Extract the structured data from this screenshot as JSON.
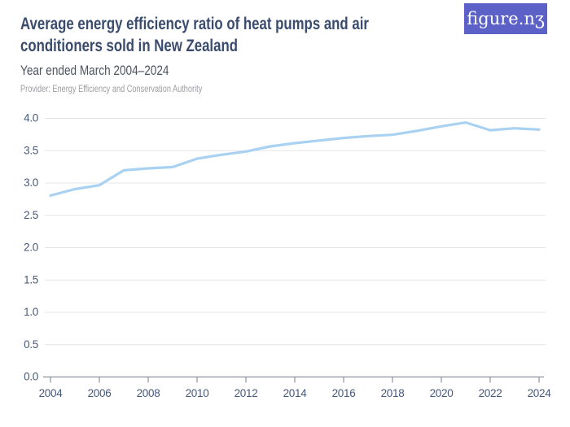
{
  "header": {
    "title": "Average energy efficiency ratio of heat pumps and air conditioners sold in New Zealand",
    "title_lines": [
      "Average energy efficiency ratio of heat pumps and air",
      "conditioners sold in New Zealand"
    ],
    "subtitle": "Year ended March 2004–2024",
    "provider": "Provider: Energy Efficiency and Conservation Authority"
  },
  "logo": {
    "text": "figure.nz",
    "display": "figure.nʒ"
  },
  "colors": {
    "title": "#3a4c6e",
    "subtitle": "#4e535e",
    "provider": "#9a9da1",
    "axis_label": "#47597b",
    "axis_line": "#75808c",
    "gridline": "#e4e4e6",
    "line": "#a9d2f2",
    "logo_bg": "#5b61c6",
    "logo_text": "#ffffff",
    "background": "#ffffff"
  },
  "chart_data": {
    "type": "line",
    "title": "Average energy efficiency ratio of heat pumps and air conditioners sold in New Zealand",
    "subtitle": "Year ended March 2004-2024",
    "x": [
      2004,
      2005,
      2006,
      2007,
      2008,
      2009,
      2010,
      2011,
      2012,
      2013,
      2014,
      2015,
      2016,
      2017,
      2018,
      2019,
      2020,
      2021,
      2022,
      2023,
      2024
    ],
    "values": [
      2.8,
      2.9,
      2.96,
      3.19,
      3.22,
      3.24,
      3.37,
      3.43,
      3.48,
      3.56,
      3.61,
      3.65,
      3.69,
      3.72,
      3.74,
      3.8,
      3.87,
      3.93,
      3.81,
      3.84,
      3.82
    ],
    "xlabel": "",
    "ylabel": "",
    "xticks": [
      2004,
      2006,
      2008,
      2010,
      2012,
      2014,
      2016,
      2018,
      2020,
      2022,
      2024
    ],
    "yticks": [
      0.0,
      0.5,
      1.0,
      1.5,
      2.0,
      2.5,
      3.0,
      3.5,
      4.0
    ],
    "ytick_labels": [
      "0.0",
      "0.5",
      "1.0",
      "1.5",
      "2.0",
      "2.5",
      "3.0",
      "3.5",
      "4.0"
    ],
    "ylim": [
      0,
      4
    ],
    "xlim": [
      2004,
      2024
    ],
    "grid": "horizontal",
    "legend": "none",
    "line_color": "#a9d2f2"
  }
}
